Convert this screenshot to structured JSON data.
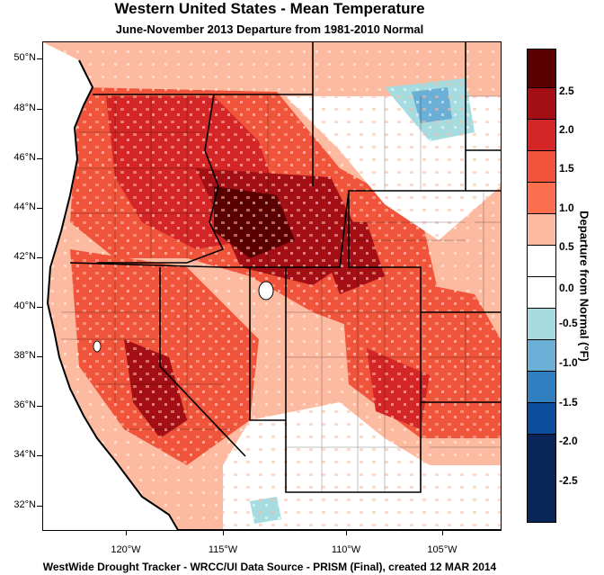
{
  "header": {
    "title": "Western United States - Mean Temperature",
    "subtitle": "June-November 2013  Departure from 1981-2010 Normal"
  },
  "footer": {
    "credit": "WestWide Drought Tracker - WRCC/UI  Data Source - PRISM (Final), created 12 MAR 2014"
  },
  "map": {
    "lat_labels": [
      "50°N",
      "48°N",
      "46°N",
      "44°N",
      "42°N",
      "40°N",
      "38°N",
      "36°N",
      "34°N",
      "32°N"
    ],
    "lon_labels": [
      "120°W",
      "115°W",
      "110°W",
      "105°W"
    ]
  },
  "legend": {
    "title": "Departure from Normal (°F)",
    "labels": [
      "2.5",
      "2.0",
      "1.5",
      "1.0",
      "0.5",
      "0.0",
      "-0.5",
      "-1.0",
      "-1.5",
      "-2.0",
      "-2.5"
    ],
    "colors": [
      "#5a0000",
      "#a30f15",
      "#d42626",
      "#f0553c",
      "#fb6f4e",
      "#fcbba1",
      "#ffffff",
      "#ffffff",
      "#a6dbe0",
      "#6baed6",
      "#2f7fc1",
      "#0b4f9c",
      "#0a2558"
    ]
  }
}
